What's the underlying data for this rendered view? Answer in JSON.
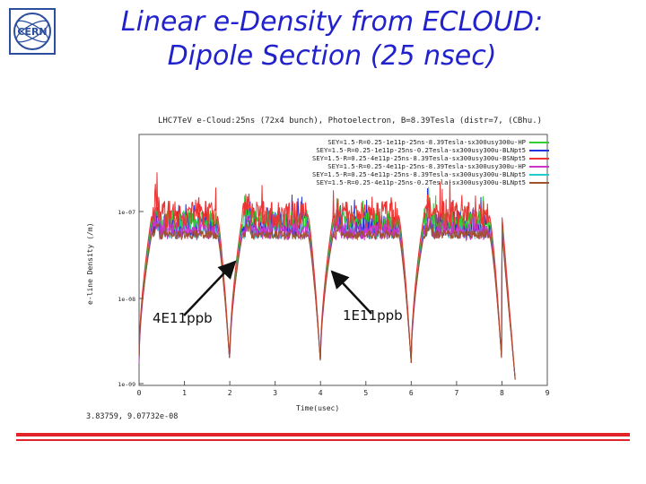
{
  "slide": {
    "title_line1": "Linear e-Density from ECLOUD:",
    "title_line2": "Dipole Section (25 nsec)",
    "logo_text": "CERN",
    "accent_color": "#e0242a",
    "title_color": "#2222cc"
  },
  "chart_data": {
    "type": "line",
    "title": "LHC7TeV e-Cloud:25ns (72x4 bunch), Photoelectron, B=8.39Tesla (distr=7, (CBhu.)",
    "xlabel": "Time(usec)",
    "ylabel": "e-line Density (/m)",
    "x_ticks": [
      "0",
      "1",
      "2",
      "3",
      "4",
      "5",
      "6",
      "7",
      "8",
      "9"
    ],
    "y_ticks": [
      "1e-07",
      "1e-08",
      "1e-09"
    ],
    "xlim": [
      0,
      9
    ],
    "log_y": true,
    "grid": false,
    "legend_position": "top-right",
    "coordinate_readout": "3.83759, 9.07732e-08",
    "series": [
      {
        "name": "SEY=1.5-R=0.25-1e11p-25ns-8.39Tesla-sx300usy300u-HP",
        "color": "#33cc33"
      },
      {
        "name": "SEY=1.5-R=0.25-1e11p-25ns-0.2Tesla-sx300usy300u-BLNpt5",
        "color": "#2233dd"
      },
      {
        "name": "SEY=1.5-R=0.25-4e11p-25ns-8.39Tesla-sx300usy300u-BSNpt5",
        "color": "#ee3333"
      },
      {
        "name": "SEY=1.5-R=0.25-4e11p-25ns-8.39Tesla-sx300usy300u-HP",
        "color": "#cc33cc"
      },
      {
        "name": "SEY=1.5-R=0.25-4e11p-25ns-8.39Tesla-sx300usy300u-BLNpt5",
        "color": "#22cccc"
      },
      {
        "name": "SEY=1.5-R=0.25-4e11p-25ns-0.2Tesla-sx300usy300u-BLNpt5",
        "color": "#a0522d"
      }
    ],
    "annotations": [
      "4E11ppb",
      "1E11ppb"
    ]
  }
}
